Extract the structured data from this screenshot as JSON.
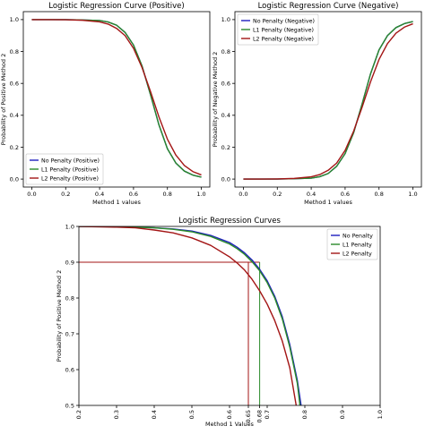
{
  "chart_data": [
    {
      "type": "line",
      "title": "Logistic Regression Curve (Positive)",
      "xlabel": "Method 1 values",
      "ylabel": "Probability of Positive Method 2",
      "xlim": [
        -0.05,
        1.05
      ],
      "ylim": [
        -0.05,
        1.05
      ],
      "x_ticks": [
        0.0,
        0.2,
        0.4,
        0.6,
        0.8,
        1.0
      ],
      "x_tick_labels": [
        "0.0",
        "0.2",
        "0.4",
        "0.6",
        "0.8",
        "1.0"
      ],
      "y_ticks": [
        0.0,
        0.2,
        0.4,
        0.6,
        0.8,
        1.0
      ],
      "y_tick_labels": [
        "0.0",
        "0.2",
        "0.4",
        "0.6",
        "0.8",
        "1.0"
      ],
      "grid": false,
      "legend": "lower-left",
      "series": [
        {
          "name": "No Penalty (Positive)",
          "color": "#1f1fbf",
          "x": [
            0.0,
            0.1,
            0.2,
            0.3,
            0.4,
            0.45,
            0.5,
            0.55,
            0.6,
            0.65,
            0.7,
            0.75,
            0.8,
            0.85,
            0.9,
            0.95,
            1.0
          ],
          "y": [
            1.0,
            1.0,
            1.0,
            0.998,
            0.994,
            0.985,
            0.965,
            0.92,
            0.84,
            0.71,
            0.53,
            0.34,
            0.19,
            0.1,
            0.05,
            0.025,
            0.012
          ]
        },
        {
          "name": "L1 Penalty (Positive)",
          "color": "#2a8a2a",
          "x": [
            0.0,
            0.1,
            0.2,
            0.3,
            0.4,
            0.45,
            0.5,
            0.55,
            0.6,
            0.65,
            0.7,
            0.75,
            0.8,
            0.85,
            0.9,
            0.95,
            1.0
          ],
          "y": [
            1.0,
            1.0,
            1.0,
            0.998,
            0.994,
            0.985,
            0.965,
            0.92,
            0.84,
            0.71,
            0.53,
            0.34,
            0.19,
            0.1,
            0.05,
            0.025,
            0.012
          ]
        },
        {
          "name": "L2 Penalty (Positive)",
          "color": "#a31515",
          "x": [
            0.0,
            0.1,
            0.2,
            0.3,
            0.4,
            0.45,
            0.5,
            0.55,
            0.6,
            0.65,
            0.7,
            0.75,
            0.8,
            0.85,
            0.9,
            0.95,
            1.0
          ],
          "y": [
            1.0,
            1.0,
            0.999,
            0.996,
            0.986,
            0.972,
            0.945,
            0.9,
            0.82,
            0.7,
            0.55,
            0.39,
            0.25,
            0.15,
            0.085,
            0.047,
            0.026
          ]
        }
      ]
    },
    {
      "type": "line",
      "title": "Logistic Regression Curve (Negative)",
      "xlabel": "Method 1 values",
      "ylabel": "Probability of Negative Method 2",
      "xlim": [
        -0.05,
        1.05
      ],
      "ylim": [
        -0.05,
        1.05
      ],
      "x_ticks": [
        0.0,
        0.2,
        0.4,
        0.6,
        0.8,
        1.0
      ],
      "x_tick_labels": [
        "0.0",
        "0.2",
        "0.4",
        "0.6",
        "0.8",
        "1.0"
      ],
      "y_ticks": [
        0.0,
        0.2,
        0.4,
        0.6,
        0.8,
        1.0
      ],
      "y_tick_labels": [
        "0.0",
        "0.2",
        "0.4",
        "0.6",
        "0.8",
        "1.0"
      ],
      "grid": false,
      "legend": "upper-left",
      "series": [
        {
          "name": "No Penalty (Negative)",
          "color": "#1f1fbf",
          "x": [
            0.0,
            0.1,
            0.2,
            0.3,
            0.4,
            0.45,
            0.5,
            0.55,
            0.6,
            0.65,
            0.7,
            0.75,
            0.8,
            0.85,
            0.9,
            0.95,
            1.0
          ],
          "y": [
            0.0,
            0.0,
            0.0,
            0.002,
            0.006,
            0.015,
            0.035,
            0.08,
            0.16,
            0.29,
            0.47,
            0.66,
            0.81,
            0.9,
            0.95,
            0.975,
            0.988
          ]
        },
        {
          "name": "L1 Penalty (Negative)",
          "color": "#2a8a2a",
          "x": [
            0.0,
            0.1,
            0.2,
            0.3,
            0.4,
            0.45,
            0.5,
            0.55,
            0.6,
            0.65,
            0.7,
            0.75,
            0.8,
            0.85,
            0.9,
            0.95,
            1.0
          ],
          "y": [
            0.0,
            0.0,
            0.0,
            0.002,
            0.006,
            0.015,
            0.035,
            0.08,
            0.16,
            0.29,
            0.47,
            0.66,
            0.81,
            0.9,
            0.95,
            0.975,
            0.988
          ]
        },
        {
          "name": "L2 Penalty (Negative)",
          "color": "#a31515",
          "x": [
            0.0,
            0.1,
            0.2,
            0.3,
            0.4,
            0.45,
            0.5,
            0.55,
            0.6,
            0.65,
            0.7,
            0.75,
            0.8,
            0.85,
            0.9,
            0.95,
            1.0
          ],
          "y": [
            0.0,
            0.0,
            0.001,
            0.004,
            0.014,
            0.028,
            0.055,
            0.1,
            0.18,
            0.3,
            0.45,
            0.61,
            0.75,
            0.85,
            0.915,
            0.953,
            0.974
          ]
        }
      ]
    },
    {
      "type": "line",
      "title": "Logistic Regression Curves",
      "xlabel": "Method 1 Values",
      "ylabel": "Probability of Positive Method 2",
      "xlim": [
        0.2,
        1.0
      ],
      "ylim": [
        0.5,
        1.0
      ],
      "x_ticks": [
        0.2,
        0.3,
        0.4,
        0.5,
        0.6,
        0.65,
        0.68,
        0.7,
        0.8,
        0.9,
        1.0
      ],
      "x_tick_labels": [
        "0.2",
        "0.3",
        "0.4",
        "0.5",
        "0.6",
        "0.65",
        "0.68",
        "0.7",
        "0.8",
        "0.9",
        "1.0"
      ],
      "y_ticks": [
        0.5,
        0.6,
        0.7,
        0.8,
        0.9,
        1.0
      ],
      "y_tick_labels": [
        "0.5",
        "0.6",
        "0.7",
        "0.8",
        "0.9",
        "1.0"
      ],
      "grid": false,
      "legend": "upper-right",
      "reference_lines": [
        {
          "kind": "horizontal",
          "y": 0.9,
          "x_from": 0.2,
          "x_to": 0.68,
          "color": "#a31515"
        },
        {
          "kind": "vertical",
          "x": 0.65,
          "y_from": 0.5,
          "y_to": 0.9,
          "color": "#a31515"
        },
        {
          "kind": "vertical",
          "x": 0.68,
          "y_from": 0.5,
          "y_to": 0.9,
          "color": "#2a8a2a"
        }
      ],
      "series": [
        {
          "name": "No Penalty",
          "color": "#1f1fbf",
          "x": [
            0.2,
            0.25,
            0.3,
            0.35,
            0.4,
            0.45,
            0.5,
            0.55,
            0.6,
            0.62,
            0.64,
            0.66,
            0.68,
            0.7,
            0.72,
            0.74,
            0.76,
            0.78,
            0.79
          ],
          "y": [
            1.0,
            1.0,
            0.999,
            0.998,
            0.996,
            0.993,
            0.987,
            0.975,
            0.955,
            0.942,
            0.926,
            0.906,
            0.88,
            0.848,
            0.805,
            0.748,
            0.67,
            0.57,
            0.5
          ]
        },
        {
          "name": "L1 Penalty",
          "color": "#2a8a2a",
          "x": [
            0.2,
            0.25,
            0.3,
            0.35,
            0.4,
            0.45,
            0.5,
            0.55,
            0.6,
            0.62,
            0.64,
            0.66,
            0.68,
            0.7,
            0.72,
            0.74,
            0.76,
            0.78,
            0.787
          ],
          "y": [
            1.0,
            1.0,
            0.999,
            0.998,
            0.996,
            0.992,
            0.985,
            0.972,
            0.951,
            0.938,
            0.922,
            0.901,
            0.876,
            0.843,
            0.8,
            0.742,
            0.663,
            0.562,
            0.5
          ]
        },
        {
          "name": "L2 Penalty",
          "color": "#a31515",
          "x": [
            0.2,
            0.25,
            0.3,
            0.35,
            0.4,
            0.45,
            0.5,
            0.55,
            0.6,
            0.62,
            0.64,
            0.66,
            0.68,
            0.7,
            0.72,
            0.74,
            0.76,
            0.777
          ],
          "y": [
            1.0,
            0.999,
            0.998,
            0.996,
            0.99,
            0.982,
            0.968,
            0.947,
            0.915,
            0.898,
            0.878,
            0.852,
            0.82,
            0.783,
            0.737,
            0.68,
            0.605,
            0.5
          ]
        }
      ]
    }
  ]
}
